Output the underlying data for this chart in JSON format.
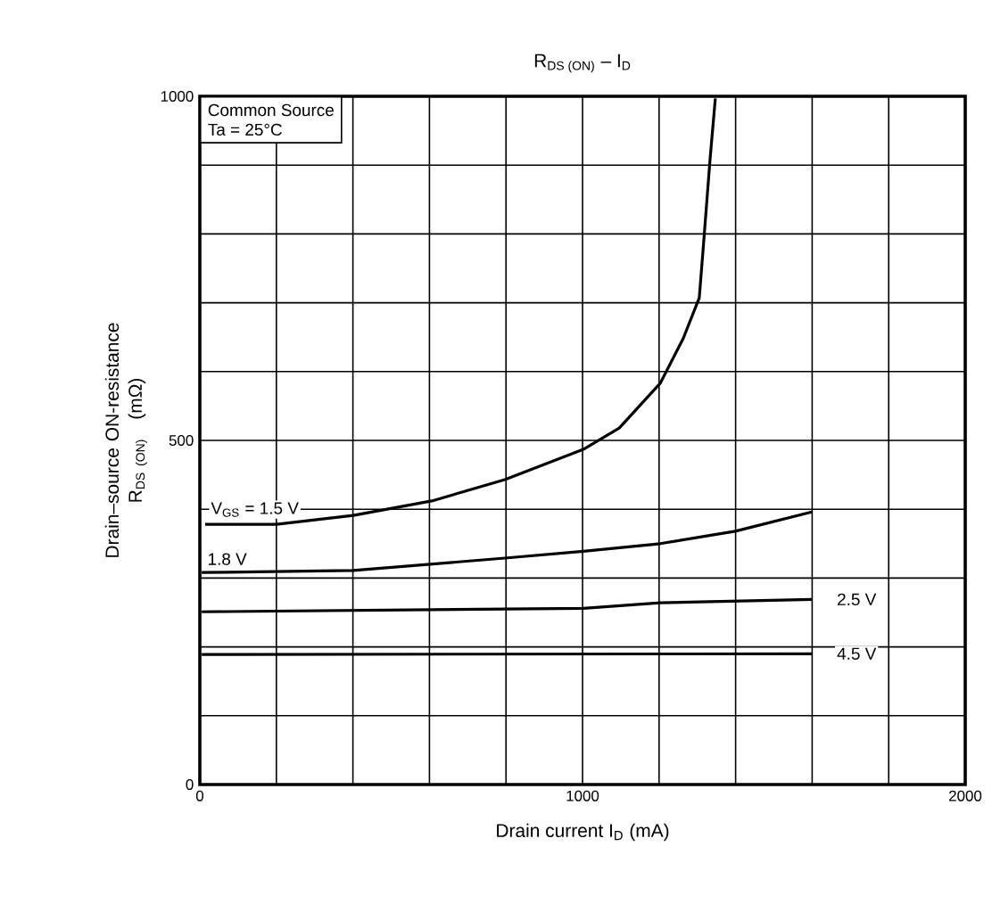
{
  "chart_data": {
    "type": "line",
    "title": "\\mbox{R}_{\\mbox{\\scriptsize DS (ON)}}\\mbox{ – I}_{\\mbox{\\scriptsize D}}",
    "xlabel": "Drain current   I$_{D}$   (mA)",
    "ylabel": "\\begin{array}{c}\\mbox{Drain–source ON-resistance}\\\\ \\mbox{R}_{\\mbox{\\scriptsize DS (ON)}}\\mbox{\\quad (mΩ)}\\end{array}",
    "annotations": [
      "Common Source",
      "Ta = 25°C"
    ],
    "series": [
      {
        "name": "V$_{GS}$ = 1.5 V",
        "color": "#000000",
        "x": [
          14,
          200,
          401,
          606,
          797,
          1002,
          1096,
          1203,
          1263,
          1305,
          1315,
          1333,
          1347
        ],
        "values": [
          378,
          378,
          391,
          412,
          443,
          487,
          518,
          583,
          648,
          707,
          777,
          907,
          997
        ]
      },
      {
        "name": "1.8 V",
        "color": "#000000",
        "x": [
          5,
          401,
          797,
          1002,
          1203,
          1399,
          1599
        ],
        "values": [
          308,
          311,
          329,
          339,
          350,
          368,
          396
        ]
      },
      {
        "name": "2.5 V",
        "color": "#000000",
        "x": [
          5,
          1002,
          1203,
          1599
        ],
        "values": [
          251,
          256,
          264,
          269
        ]
      },
      {
        "name": "4.5 V",
        "color": "#000000",
        "x": [
          5,
          1599
        ],
        "values": [
          189,
          190
        ]
      }
    ],
    "xlim": [
      0,
      2000
    ],
    "ylim": [
      0,
      1000
    ],
    "xticks": [
      0,
      {
        "value": 200,
        "label": null
      },
      {
        "value": 400,
        "label": null
      },
      {
        "value": 600,
        "label": null
      },
      {
        "value": 800,
        "label": null
      },
      1000,
      {
        "value": 1200,
        "label": null
      },
      {
        "value": 1400,
        "label": null
      },
      {
        "value": 1600,
        "label": null
      },
      {
        "value": 1800,
        "label": null
      },
      2000
    ],
    "yticks": [
      0,
      {
        "value": 100,
        "label": null
      },
      {
        "value": 200,
        "label": null
      },
      {
        "value": 300,
        "label": null
      },
      {
        "value": 400,
        "label": null
      },
      500,
      {
        "value": 600,
        "label": null
      },
      {
        "value": 700,
        "label": null
      },
      {
        "value": 800,
        "label": null
      },
      {
        "value": 900,
        "label": null
      },
      1000
    ],
    "grid": true,
    "marker": "none",
    "line_style": "solid"
  }
}
